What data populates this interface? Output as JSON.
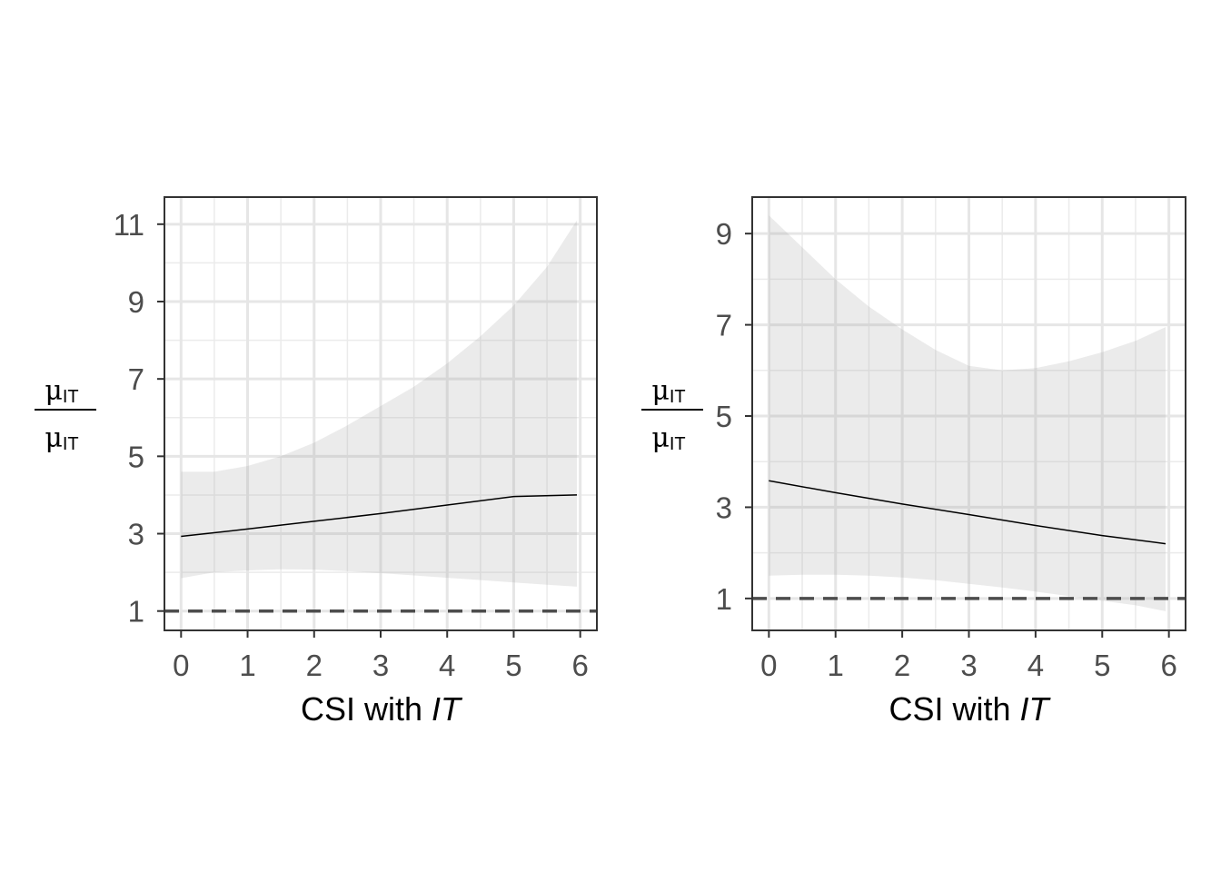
{
  "chart_data": [
    {
      "type": "line",
      "xlabel": "CSI with ",
      "xlabel_italic": "IT",
      "ylabel_num": "μ",
      "ylabel_num_sub": "IT",
      "ylabel_den": "μ",
      "ylabel_den_sub": "IT",
      "xlim": [
        -0.25,
        6.25
      ],
      "ylim": [
        0.5,
        11.7
      ],
      "xticks": [
        0,
        1,
        2,
        3,
        4,
        5,
        6
      ],
      "yticks": [
        1,
        3,
        5,
        7,
        9,
        11
      ],
      "grid": true,
      "reference_line": {
        "y": 1,
        "style": "dashed"
      },
      "series": [
        {
          "x": [
            0,
            1,
            2,
            3,
            4,
            5,
            5.95
          ],
          "y": [
            2.93,
            3.12,
            3.32,
            3.52,
            3.74,
            3.96,
            4.0
          ]
        }
      ],
      "band": {
        "x": [
          0,
          0.5,
          1,
          1.5,
          2,
          2.5,
          3,
          3.5,
          4,
          4.5,
          5,
          5.5,
          5.95
        ],
        "upper": [
          4.6,
          4.6,
          4.75,
          5.0,
          5.35,
          5.8,
          6.3,
          6.8,
          7.4,
          8.1,
          8.9,
          9.9,
          11.1
        ],
        "lower": [
          1.85,
          2.0,
          2.05,
          2.08,
          2.07,
          2.03,
          1.98,
          1.92,
          1.86,
          1.8,
          1.74,
          1.68,
          1.63
        ]
      }
    },
    {
      "type": "line",
      "xlabel": "CSI with ",
      "xlabel_italic": "IT",
      "ylabel_num": "μ",
      "ylabel_num_sub": "IT",
      "ylabel_den": "μ",
      "ylabel_den_sub": "IT",
      "xlim": [
        -0.25,
        6.25
      ],
      "ylim": [
        0.3,
        9.8
      ],
      "xticks": [
        0,
        1,
        2,
        3,
        4,
        5,
        6
      ],
      "yticks": [
        1,
        3,
        5,
        7,
        9
      ],
      "grid": true,
      "reference_line": {
        "y": 1,
        "style": "dashed"
      },
      "series": [
        {
          "x": [
            0,
            1,
            2,
            3,
            4,
            5,
            5.95
          ],
          "y": [
            3.58,
            3.32,
            3.07,
            2.84,
            2.6,
            2.38,
            2.2
          ]
        }
      ],
      "band": {
        "x": [
          0,
          0.5,
          1,
          1.5,
          2,
          2.5,
          3,
          3.5,
          4,
          4.5,
          5,
          5.5,
          5.95
        ],
        "upper": [
          9.4,
          8.7,
          8.0,
          7.4,
          6.9,
          6.45,
          6.1,
          6.0,
          6.05,
          6.2,
          6.4,
          6.65,
          6.95
        ],
        "lower": [
          1.5,
          1.52,
          1.52,
          1.5,
          1.46,
          1.4,
          1.32,
          1.24,
          1.15,
          1.05,
          0.95,
          0.85,
          0.72
        ]
      }
    }
  ]
}
